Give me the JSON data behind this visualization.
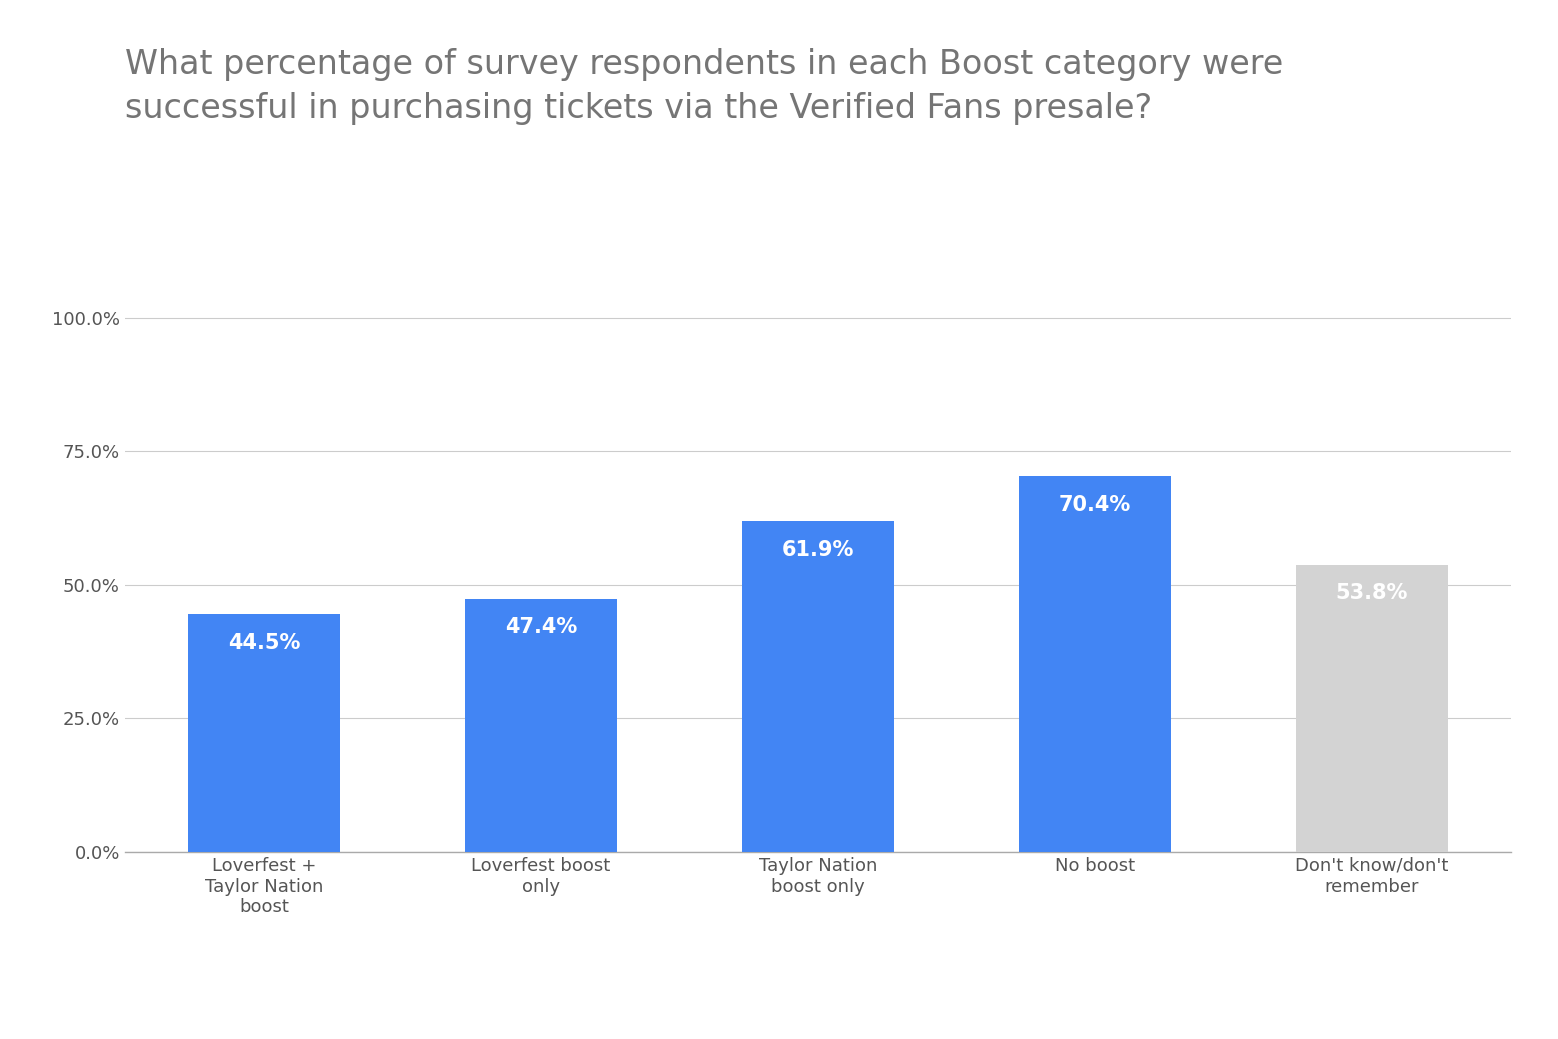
{
  "title": "What percentage of survey respondents in each Boost category were\nsuccessful in purchasing tickets via the Verified Fans presale?",
  "categories": [
    "Loverfest +\nTaylor Nation\nboost",
    "Loverfest boost\nonly",
    "Taylor Nation\nboost only",
    "No boost",
    "Don't know/don't\nremember"
  ],
  "values": [
    44.5,
    47.4,
    61.9,
    70.4,
    53.8
  ],
  "bar_colors": [
    "#4285F4",
    "#4285F4",
    "#4285F4",
    "#4285F4",
    "#D3D3D3"
  ],
  "bar_labels": [
    "44.5%",
    "47.4%",
    "61.9%",
    "70.4%",
    "53.8%"
  ],
  "yticks": [
    0,
    25.0,
    50.0,
    75.0,
    100.0
  ],
  "ytick_labels": [
    "0.0%",
    "25.0%",
    "50.0%",
    "75.0%",
    "100.0%"
  ],
  "ylim": [
    0,
    105
  ],
  "background_color": "#ffffff",
  "title_color": "#757575",
  "title_fontsize": 24,
  "label_fontsize": 13,
  "tick_fontsize": 13,
  "bar_label_fontsize": 15,
  "bar_label_color": "#ffffff",
  "grid_color": "#cccccc",
  "axis_color": "#aaaaaa"
}
